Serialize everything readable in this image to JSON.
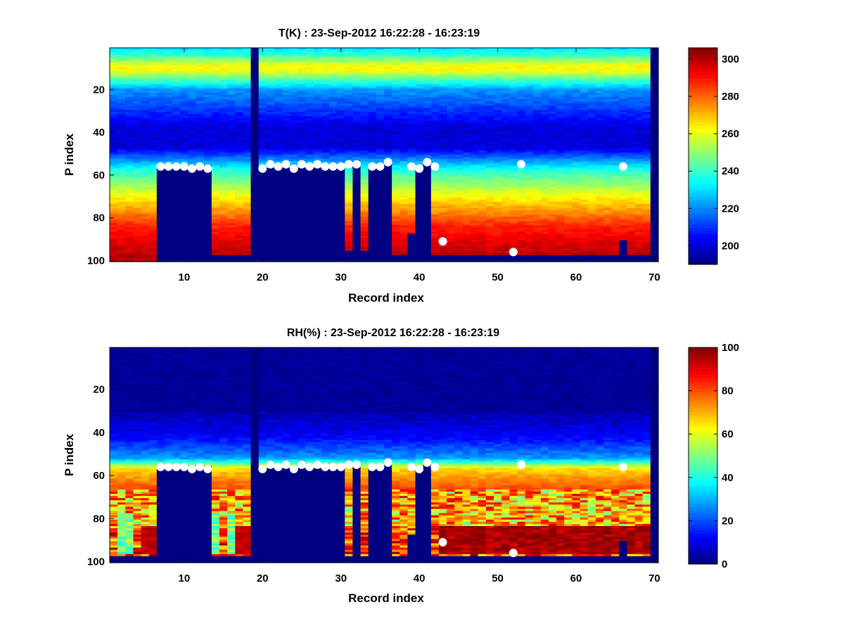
{
  "chart_data": [
    {
      "type": "heatmap",
      "title": "T(K) : 23-Sep-2012 16:22:28 - 16:23:19",
      "xlabel": "Record index",
      "ylabel": "P index",
      "xlim": [
        1,
        70
      ],
      "ylim": [
        1,
        100
      ],
      "y_reversed": true,
      "xticks": [
        10,
        20,
        30,
        40,
        50,
        60,
        70
      ],
      "yticks": [
        20,
        40,
        60,
        80,
        100
      ],
      "colormap": "jet",
      "clim": [
        190,
        306
      ],
      "colorbar_ticks": [
        200,
        220,
        240,
        260,
        280,
        300
      ],
      "marker_color": "#ffffff",
      "markers": {
        "x": [
          7,
          8,
          9,
          10,
          11,
          12,
          13,
          20,
          21,
          22,
          23,
          24,
          25,
          26,
          27,
          28,
          29,
          30,
          31,
          32,
          34,
          35,
          36,
          39,
          40,
          41,
          42,
          43,
          52,
          53,
          66
        ],
        "y": [
          56,
          56,
          56,
          56,
          57,
          56,
          57,
          57,
          55,
          56,
          55,
          57,
          55,
          56,
          55,
          56,
          56,
          56,
          55,
          55,
          56,
          56,
          54,
          56,
          57,
          54,
          56,
          91,
          96,
          55,
          56
        ]
      }
    },
    {
      "type": "heatmap",
      "title": "RH(%) : 23-Sep-2012 16:22:28 - 16:23:19",
      "xlabel": "Record index",
      "ylabel": "P index",
      "xlim": [
        1,
        70
      ],
      "ylim": [
        1,
        100
      ],
      "y_reversed": true,
      "xticks": [
        10,
        20,
        30,
        40,
        50,
        60,
        70
      ],
      "yticks": [
        20,
        40,
        60,
        80,
        100
      ],
      "colormap": "jet",
      "clim": [
        0,
        100
      ],
      "colorbar_ticks": [
        0,
        20,
        40,
        60,
        80,
        100
      ],
      "marker_color": "#ffffff",
      "markers": {
        "x": [
          7,
          8,
          9,
          10,
          11,
          12,
          13,
          20,
          21,
          22,
          23,
          24,
          25,
          26,
          27,
          28,
          29,
          30,
          31,
          32,
          34,
          35,
          36,
          39,
          40,
          41,
          42,
          43,
          52,
          53,
          66
        ],
        "y": [
          56,
          56,
          56,
          56,
          57,
          56,
          57,
          57,
          55,
          56,
          55,
          57,
          55,
          56,
          55,
          56,
          56,
          56,
          55,
          55,
          56,
          56,
          54,
          56,
          57,
          54,
          56,
          91,
          96,
          55,
          56
        ]
      }
    }
  ]
}
